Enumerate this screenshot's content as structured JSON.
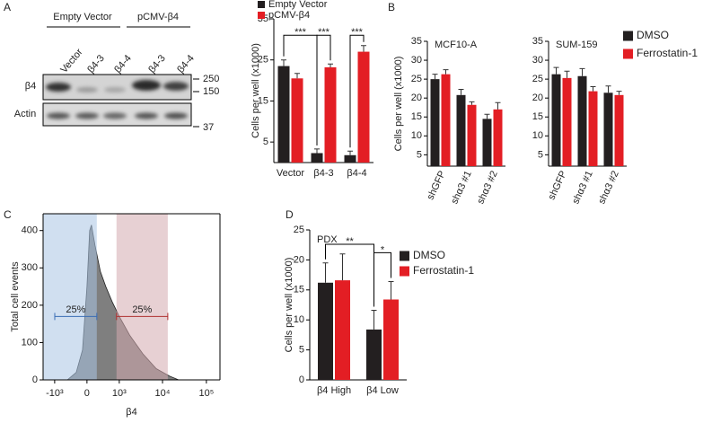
{
  "panel_labels": [
    "A",
    "B",
    "C",
    "D"
  ],
  "blot": {
    "groups": [
      "Empty Vector",
      "pCMV-β4"
    ],
    "lanes": [
      "Vector",
      "β4-3",
      "β4-4",
      "β4-3",
      "β4-4"
    ],
    "rows": [
      "β4",
      "Actin"
    ],
    "markers": [
      250,
      150,
      37
    ]
  },
  "chart_data": [
    {
      "type": "bar",
      "ylabel": "Cells per well (x1000)",
      "categories": [
        "Vector",
        "β4-3",
        "β4-4"
      ],
      "series": [
        {
          "name": "Empty Vector",
          "color": "#231f20",
          "values": [
            23.5,
            2.3,
            1.8
          ],
          "errors": [
            1.5,
            1,
            1
          ]
        },
        {
          "name": "pCMV-β4",
          "color": "#e31e24",
          "values": [
            20.5,
            23.2,
            27
          ],
          "errors": [
            1.2,
            0.8,
            1.5
          ]
        }
      ],
      "ylim": [
        0,
        35
      ],
      "yticks": [
        5,
        15,
        25,
        35
      ],
      "legend": "top",
      "annotations": [
        "***",
        "***",
        "***"
      ]
    },
    {
      "type": "bar",
      "title": "MCF10-A",
      "ylabel": "Cells per well (x1000)",
      "categories": [
        "shGFP",
        "shα3 #1",
        "shα3 #2"
      ],
      "series": [
        {
          "color": "#231f20",
          "values": [
            25,
            20.8,
            14.5
          ],
          "errors": [
            1.3,
            1.5,
            1.2
          ]
        },
        {
          "color": "#e31e24",
          "values": [
            26.3,
            18.2,
            17
          ],
          "errors": [
            1.2,
            0.8,
            1.8
          ]
        }
      ],
      "ylim": [
        2,
        35
      ],
      "yticks": [
        5,
        10,
        15,
        20,
        25,
        30,
        35
      ]
    },
    {
      "type": "bar",
      "title": "SUM-159",
      "categories": [
        "shGFP",
        "shα3 #1",
        "shα3 #2"
      ],
      "series": [
        {
          "name": "DMSO",
          "color": "#231f20",
          "values": [
            26.3,
            25.8,
            21.4
          ],
          "errors": [
            1.8,
            2,
            1.8
          ]
        },
        {
          "name": "Ferrostatin-1",
          "color": "#e31e24",
          "values": [
            25.3,
            21.8,
            20.8
          ],
          "errors": [
            1.8,
            1.2,
            1
          ]
        }
      ],
      "ylim": [
        2,
        35
      ],
      "yticks": [
        5,
        10,
        15,
        20,
        25,
        30,
        35
      ],
      "legend": "right"
    },
    {
      "type": "area",
      "ylabel": "Total cell events",
      "xlabel": "β4",
      "xscale": "asinh",
      "color": "#7f7f7f",
      "x": [
        -1880,
        -466,
        -226,
        -90,
        0,
        54,
        90,
        166,
        291,
        439,
        658,
        1000,
        1760,
        3550,
        7200,
        14600,
        23300,
        204000
      ],
      "values": [
        0,
        0,
        20,
        80,
        250,
        400,
        415,
        360,
        290,
        250,
        210,
        170,
        120,
        70,
        30,
        10,
        0,
        0
      ],
      "xlim": [
        -1880,
        204000
      ],
      "xticks": [
        {
          "value": -1000,
          "label": "-10³"
        },
        0,
        {
          "value": 1000,
          "label": "10³"
        },
        {
          "value": 10000,
          "label": "10⁴"
        },
        {
          "value": 100000,
          "label": "10⁵"
        }
      ],
      "ylim": [
        0,
        445
      ],
      "yticks": [
        0,
        100,
        200,
        300,
        400
      ],
      "gates": [
        {
          "range": [
            -1880,
            205
          ],
          "label": "25%",
          "color": "#a9c4e4",
          "line_color": "#3a6db5"
        },
        {
          "range": [
            855,
            13200
          ],
          "label": "25%",
          "color": "#d4a9ae",
          "line_color": "#b03030"
        }
      ]
    },
    {
      "type": "bar",
      "title": "PDX",
      "ylabel": "Cells per well (x1000)",
      "categories": [
        "β4 High",
        "β4 Low"
      ],
      "series": [
        {
          "name": "DMSO",
          "color": "#231f20",
          "values": [
            16.2,
            8.4
          ],
          "errors": [
            3.3,
            3.2
          ]
        },
        {
          "name": "Ferrostatin-1",
          "color": "#e31e24",
          "values": [
            16.6,
            13.4
          ],
          "errors": [
            4.4,
            3
          ]
        }
      ],
      "ylim": [
        0,
        25
      ],
      "yticks": [
        0,
        5,
        10,
        15,
        20,
        25
      ],
      "legend": "top-right",
      "annotations": [
        "**",
        "*"
      ]
    }
  ]
}
